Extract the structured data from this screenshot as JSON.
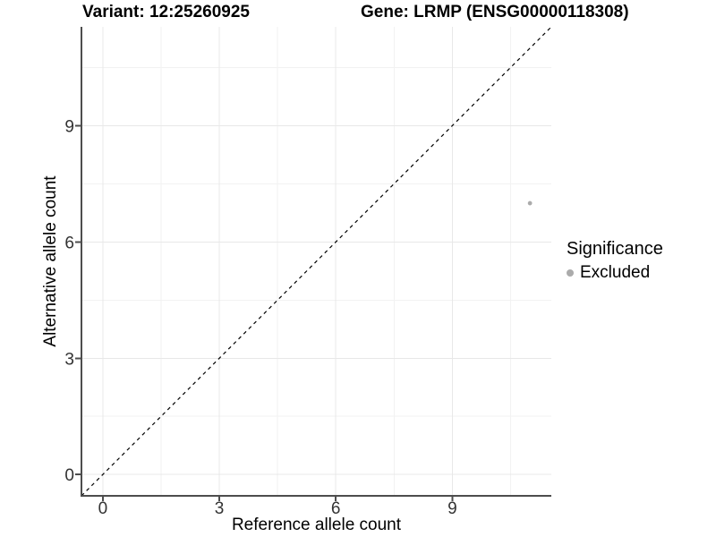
{
  "chart_data": {
    "type": "scatter",
    "titles": {
      "left": "Variant: 12:25260925",
      "right": "Gene: LRMP (ENSG00000118308)"
    },
    "xlabel": "Reference allele count",
    "ylabel": "Alternative allele count",
    "xlim": [
      -0.55,
      11.55
    ],
    "ylim": [
      -0.55,
      11.55
    ],
    "x_ticks": [
      0,
      3,
      6,
      9
    ],
    "y_ticks": [
      0,
      3,
      6,
      9
    ],
    "x_minor_gridlines": [
      1.5,
      4.5,
      7.5,
      10.5
    ],
    "y_minor_gridlines": [
      1.5,
      4.5,
      7.5,
      10.5
    ],
    "grid": true,
    "series": [
      {
        "name": "Excluded",
        "color": "#ababab",
        "points": [
          {
            "x": 11,
            "y": 7
          }
        ]
      }
    ],
    "reference_line": {
      "kind": "identity y=x",
      "style": "dashed",
      "color": "#000000"
    },
    "legend": {
      "title": "Significance",
      "position": "right",
      "entries": [
        {
          "label": "Excluded",
          "color": "#ababab"
        }
      ]
    },
    "colors": {
      "background": "#ffffff",
      "axis": "#4d4d4d",
      "grid_major": "#e8e8e8",
      "grid_minor": "#f2f2f2",
      "tick_label": "#333333",
      "point": "#ababab"
    }
  }
}
